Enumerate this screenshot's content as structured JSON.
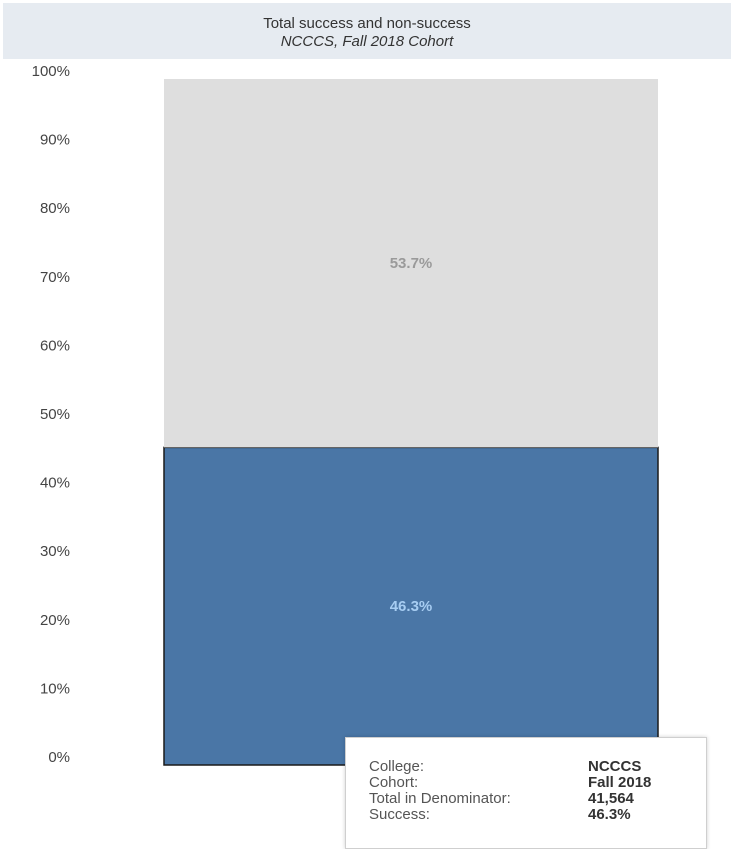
{
  "chart_data": {
    "type": "bar",
    "stacked": true,
    "title": "Total success and non-success",
    "subtitle": "NCCCS, Fall 2018 Cohort",
    "y_ticks": [
      "0%",
      "10%",
      "20%",
      "30%",
      "40%",
      "50%",
      "60%",
      "70%",
      "80%",
      "90%",
      "100%"
    ],
    "ylim": [
      0,
      100
    ],
    "categories": [
      "NCCCS"
    ],
    "series": [
      {
        "values": [
          46.3
        ],
        "label": "46.3%",
        "color": "#4a76a6",
        "label_color": "#a7cdf2"
      },
      {
        "values": [
          53.7
        ],
        "label": "53.7%",
        "color": "#dedede",
        "label_color": "#9a9a9a"
      }
    ]
  },
  "tooltip": {
    "rows": [
      {
        "label": "College:",
        "value": "NCCCS"
      },
      {
        "label": "Cohort:",
        "value": "Fall 2018"
      },
      {
        "label": "Total in Denominator:",
        "value": "41,564"
      },
      {
        "label": "Success:",
        "value": "46.3%"
      }
    ]
  }
}
